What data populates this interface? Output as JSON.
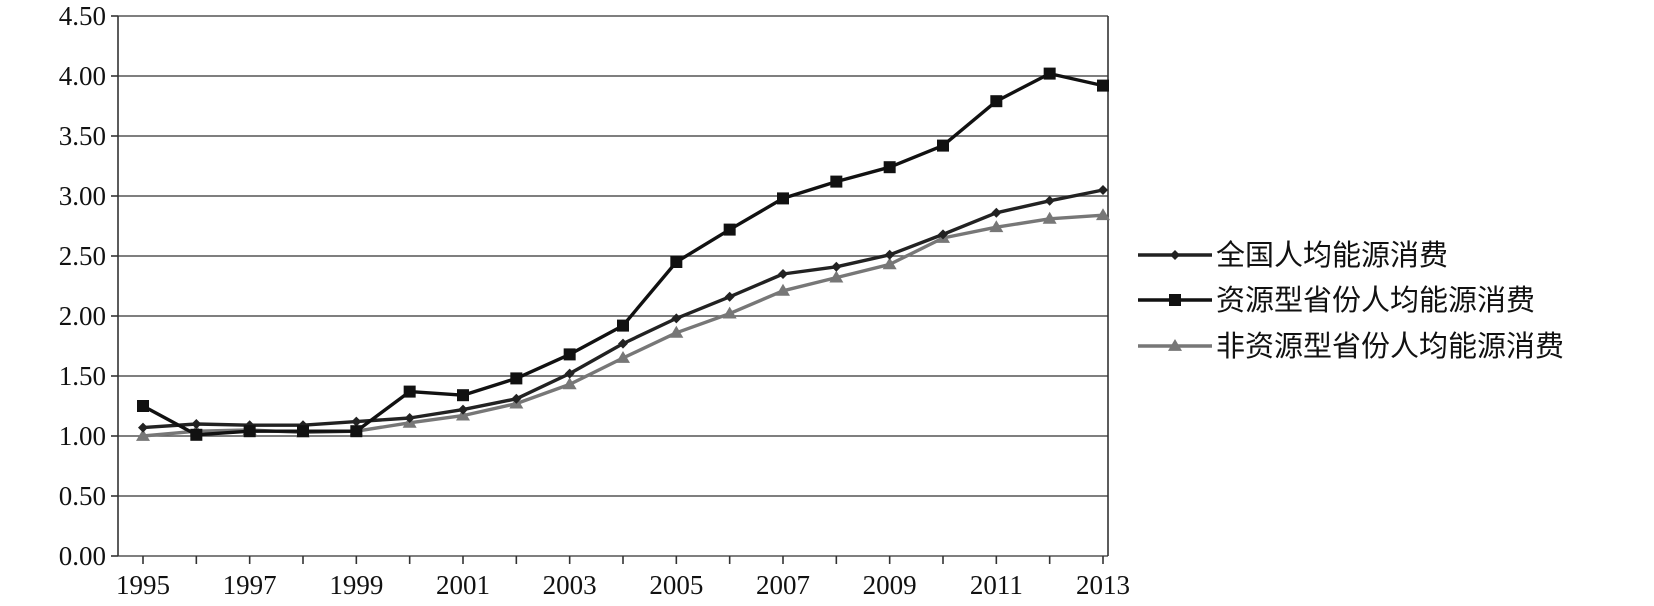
{
  "chart_data": {
    "type": "line",
    "title": "",
    "xlabel": "",
    "ylabel": "",
    "x": [
      1995,
      1996,
      1997,
      1998,
      1999,
      2000,
      2001,
      2002,
      2003,
      2004,
      2005,
      2006,
      2007,
      2008,
      2009,
      2010,
      2011,
      2012,
      2013
    ],
    "x_tick_labels": [
      "1995",
      "1997",
      "1999",
      "2001",
      "2003",
      "2005",
      "2007",
      "2009",
      "2011",
      "2013"
    ],
    "y_tick_labels": [
      "0.00",
      "0.50",
      "1.00",
      "1.50",
      "2.00",
      "2.50",
      "3.00",
      "3.50",
      "4.00",
      "4.50"
    ],
    "ylim": [
      0,
      4.5
    ],
    "grid": "horizontal",
    "legend_position": "right",
    "series": [
      {
        "name": "全国人均能源消费",
        "color": "#222222",
        "marker": "diamond",
        "values": [
          1.07,
          1.1,
          1.09,
          1.09,
          1.12,
          1.15,
          1.22,
          1.31,
          1.52,
          1.77,
          1.98,
          2.16,
          2.35,
          2.41,
          2.51,
          2.68,
          2.86,
          2.96,
          3.05
        ]
      },
      {
        "name": "资源型省份人均能源消费",
        "color": "#111111",
        "marker": "square",
        "values": [
          1.25,
          1.01,
          1.04,
          1.04,
          1.04,
          1.37,
          1.34,
          1.48,
          1.68,
          1.92,
          2.45,
          2.72,
          2.98,
          3.12,
          3.24,
          3.42,
          3.79,
          4.02,
          3.92
        ]
      },
      {
        "name": "非资源型省份人均能源消费",
        "color": "#777777",
        "marker": "triangle",
        "values": [
          1.0,
          1.04,
          1.05,
          1.03,
          1.04,
          1.11,
          1.17,
          1.27,
          1.43,
          1.65,
          1.86,
          2.02,
          2.21,
          2.32,
          2.43,
          2.65,
          2.74,
          2.81,
          2.84
        ]
      }
    ]
  }
}
